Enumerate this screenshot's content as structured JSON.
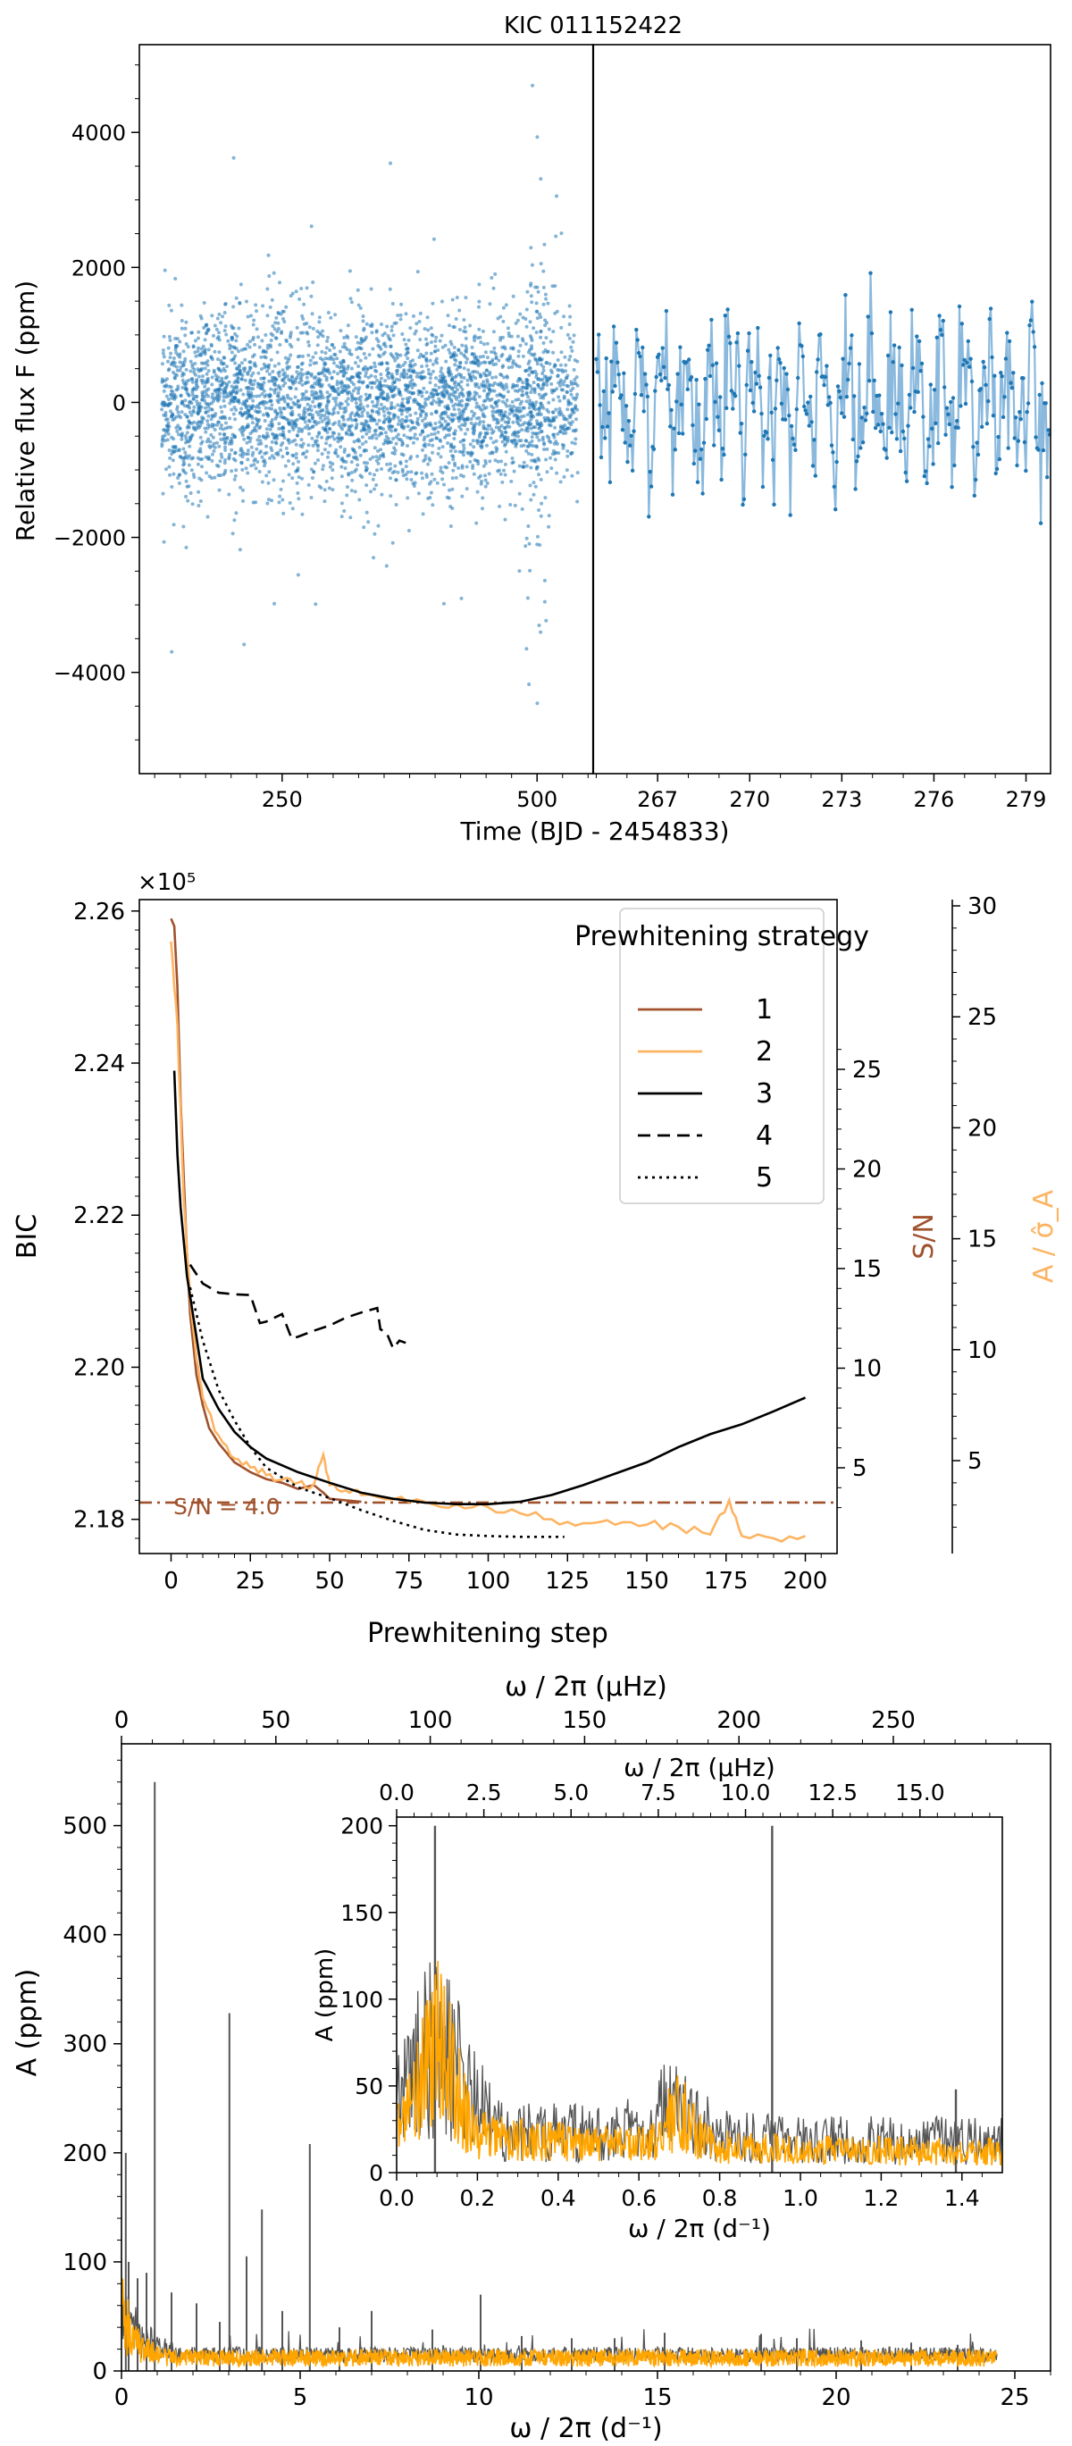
{
  "chart_data": [
    {
      "type": "scatter",
      "title": "KIC 011152422",
      "ylabel": "Relative flux F (ppm)",
      "xlabel": "Time (BJD - 2454833)",
      "left_panel": {
        "xlim": [
          110,
          555
        ],
        "x_ticks": [
          250,
          500
        ],
        "note": "dense scatter of flux measurements, spread about ±2000 ppm, wider burst near t≈500"
      },
      "right_panel": {
        "xlim": [
          264.9,
          279.8
        ],
        "x_ticks": [
          267,
          270,
          273,
          276,
          279
        ],
        "series": "connected light curve points"
      },
      "ylim": [
        -5500,
        5300
      ],
      "y_ticks": [
        -4000,
        -2000,
        0,
        2000,
        4000
      ],
      "color": "#1f77b4"
    },
    {
      "type": "line",
      "xlabel": "Prewhitening step",
      "ylabel": "BIC",
      "ylabel_right1": "S/N",
      "ylabel_right2": "A / σ̂_A",
      "y_multiplier": "×10⁵",
      "ylim": [
        2.1755,
        2.2615
      ],
      "y_ticks": [
        2.18,
        2.2,
        2.22,
        2.24,
        2.26
      ],
      "xlim": [
        -10,
        210
      ],
      "x_ticks": [
        0,
        25,
        50,
        75,
        100,
        125,
        150,
        175,
        200
      ],
      "snr_ticks": [
        5,
        10,
        15,
        20,
        25
      ],
      "a_sigma_ticks": [
        5,
        10,
        15,
        20,
        25,
        30
      ],
      "threshold_label": "S/N = 4.0",
      "threshold_bic": 2.1822,
      "legend_title": "Prewhitening strategy",
      "legend_position": "top-right",
      "series": [
        {
          "name": "1",
          "color": "#a0522d",
          "style": "solid",
          "x": [
            0,
            1,
            2,
            3,
            4,
            5,
            6,
            8,
            10,
            12,
            15,
            20,
            25,
            30,
            35,
            40,
            45,
            48,
            50,
            55,
            60
          ],
          "y": [
            2.259,
            2.258,
            2.25,
            2.235,
            2.225,
            2.215,
            2.207,
            2.199,
            2.195,
            2.192,
            2.19,
            2.1875,
            2.1862,
            2.1853,
            2.1848,
            2.184,
            2.1845,
            2.1835,
            2.1827,
            2.1825,
            2.1823
          ]
        },
        {
          "name": "2",
          "color": "#fdb462",
          "style": "solid",
          "x": [
            0,
            2,
            4,
            6,
            8,
            10,
            15,
            20,
            25,
            30,
            35,
            40,
            45,
            48,
            50,
            55,
            60,
            70,
            80,
            90,
            100,
            110,
            120,
            130,
            140,
            150,
            160,
            170,
            176,
            180,
            190,
            200
          ],
          "y": [
            2.256,
            2.245,
            2.222,
            2.209,
            2.201,
            2.196,
            2.191,
            2.188,
            2.1868,
            2.1858,
            2.1852,
            2.1848,
            2.1846,
            2.1885,
            2.1845,
            2.1838,
            2.1832,
            2.1826,
            2.1823,
            2.182,
            2.1816,
            2.1808,
            2.18,
            2.1795,
            2.1793,
            2.1793,
            2.179,
            2.178,
            2.1825,
            2.1778,
            2.1775,
            2.1778
          ]
        },
        {
          "name": "3",
          "color": "#000000",
          "style": "solid",
          "x": [
            1,
            2,
            3,
            5,
            8,
            10,
            15,
            20,
            25,
            30,
            40,
            50,
            60,
            70,
            80,
            90,
            100,
            110,
            120,
            130,
            140,
            150,
            160,
            170,
            180,
            190,
            200
          ],
          "y": [
            2.239,
            2.228,
            2.221,
            2.212,
            2.204,
            2.1985,
            2.1945,
            2.1915,
            2.1895,
            2.188,
            2.1862,
            2.1848,
            2.1835,
            2.1827,
            2.1822,
            2.182,
            2.182,
            2.1823,
            2.1832,
            2.1845,
            2.186,
            2.1875,
            2.1895,
            2.1912,
            2.1925,
            2.1942,
            2.196
          ]
        },
        {
          "name": "4",
          "color": "#000000",
          "style": "dashed",
          "x": [
            6,
            10,
            15,
            20,
            25,
            28,
            30,
            35,
            38,
            40,
            45,
            50,
            55,
            60,
            65,
            66,
            68,
            70,
            72,
            74
          ],
          "y": [
            2.2135,
            2.211,
            2.2098,
            2.2096,
            2.2095,
            2.2058,
            2.206,
            2.207,
            2.2038,
            2.204,
            2.2048,
            2.2055,
            2.2065,
            2.2072,
            2.2078,
            2.205,
            2.2045,
            2.2025,
            2.2035,
            2.2032
          ]
        },
        {
          "name": "5",
          "color": "#000000",
          "style": "dotted",
          "x": [
            6,
            10,
            15,
            20,
            25,
            30,
            40,
            50,
            60,
            70,
            80,
            90,
            100,
            110,
            120,
            124
          ],
          "y": [
            2.2105,
            2.2035,
            2.197,
            2.193,
            2.1895,
            2.1868,
            2.1842,
            2.1828,
            2.1812,
            2.1798,
            2.1786,
            2.178,
            2.1778,
            2.1777,
            2.1777,
            2.1777
          ]
        }
      ]
    },
    {
      "type": "bar",
      "xlabel": "ω / 2π (d⁻¹)",
      "x2label": "ω / 2π (μHz)",
      "ylabel": "A (ppm)",
      "xlim": [
        0,
        26
      ],
      "ylim": [
        0,
        575
      ],
      "x_ticks": [
        0,
        5,
        10,
        15,
        20,
        25
      ],
      "x2_ticks": [
        0,
        50,
        100,
        150,
        200,
        250
      ],
      "y_ticks": [
        0,
        100,
        200,
        300,
        400,
        500
      ],
      "series": [
        {
          "name": "",
          "color": "#555555",
          "freq": [
            0.93,
            3.02,
            3.93,
            5.27,
            0.12,
            0.2,
            0.45,
            0.7,
            1.4,
            2.1,
            2.75,
            3.5,
            4.5,
            6.1,
            7.0,
            8.7,
            10.05,
            11.2,
            12.6,
            13.8,
            15.2,
            17.9,
            18.9,
            20.7,
            22.1,
            23.4
          ],
          "amp": [
            540,
            328,
            148,
            208,
            200,
            100,
            85,
            90,
            72,
            62,
            45,
            105,
            55,
            40,
            55,
            38,
            70,
            32,
            30,
            30,
            35,
            34,
            30,
            28,
            26,
            24
          ]
        },
        {
          "name": "",
          "color": "#ffa500",
          "level": 12
        }
      ],
      "inset": {
        "xlabel": "ω / 2π (d⁻¹)",
        "x2label": "ω / 2π (μHz)",
        "ylabel": "A (ppm)",
        "xlim": [
          0,
          1.5
        ],
        "ylim": [
          0,
          205
        ],
        "x_ticks": [
          0.0,
          0.2,
          0.4,
          0.6,
          0.8,
          1.0,
          1.2,
          1.4
        ],
        "x2_ticks": [
          0.0,
          2.5,
          5.0,
          7.5,
          10.0,
          12.5,
          15.0
        ],
        "y_ticks": [
          0,
          50,
          100,
          150,
          200
        ],
        "strong_lines": [
          {
            "f": 0.095,
            "a": 200
          },
          {
            "f": 0.93,
            "a": 200
          },
          {
            "f": 1.385,
            "a": 48
          }
        ]
      }
    }
  ]
}
